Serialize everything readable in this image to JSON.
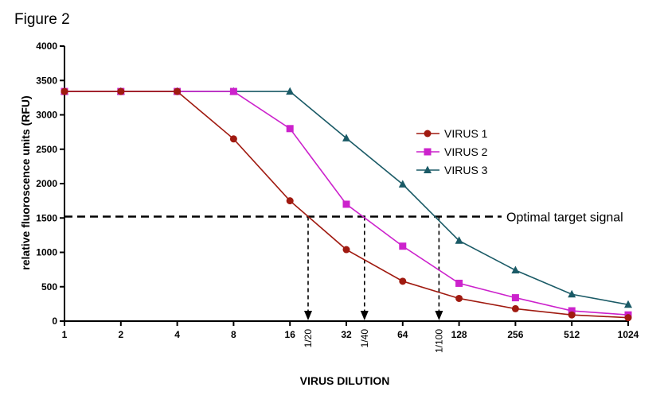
{
  "figure_label": "Figure 2",
  "chart_data": {
    "type": "line",
    "xscale": "log2",
    "x": [
      1,
      2,
      4,
      8,
      16,
      32,
      64,
      128,
      256,
      512,
      1024
    ],
    "x_tick_labels": [
      "1",
      "2",
      "4",
      "8",
      "16",
      "32",
      "64",
      "128",
      "256",
      "512",
      "1024"
    ],
    "xlabel": "VIRUS DILUTION",
    "ylabel": "relative fluoroscence units (RFU)",
    "ylim": [
      0,
      4000
    ],
    "y_ticks": [
      0,
      500,
      1000,
      1500,
      2000,
      2500,
      3000,
      3500,
      4000
    ],
    "y_tick_labels": [
      "0",
      "500",
      "1000",
      "1500",
      "2000",
      "2500",
      "3000",
      "3500",
      "4000"
    ],
    "series": [
      {
        "name": "VIRUS 1",
        "color": "#a01a10",
        "marker": "circle",
        "values": [
          3340,
          3340,
          3340,
          2650,
          1750,
          1040,
          580,
          330,
          180,
          90,
          50
        ]
      },
      {
        "name": "VIRUS 2",
        "color": "#cc22cc",
        "marker": "square",
        "values": [
          3340,
          3340,
          3340,
          3340,
          2800,
          1700,
          1090,
          550,
          340,
          150,
          90
        ]
      },
      {
        "name": "VIRUS 3",
        "color": "#1a5a66",
        "marker": "triangle",
        "values": [
          3340,
          3340,
          3340,
          3340,
          3340,
          2660,
          1990,
          1170,
          740,
          390,
          240
        ]
      }
    ],
    "threshold": {
      "value": 1520,
      "label": "Optimal target signal"
    },
    "dilution_markers": [
      {
        "x": 20,
        "label": "1/20"
      },
      {
        "x": 40,
        "label": "1/40"
      },
      {
        "x": 100,
        "label": "1/100"
      }
    ],
    "legend_position": "center-right"
  }
}
